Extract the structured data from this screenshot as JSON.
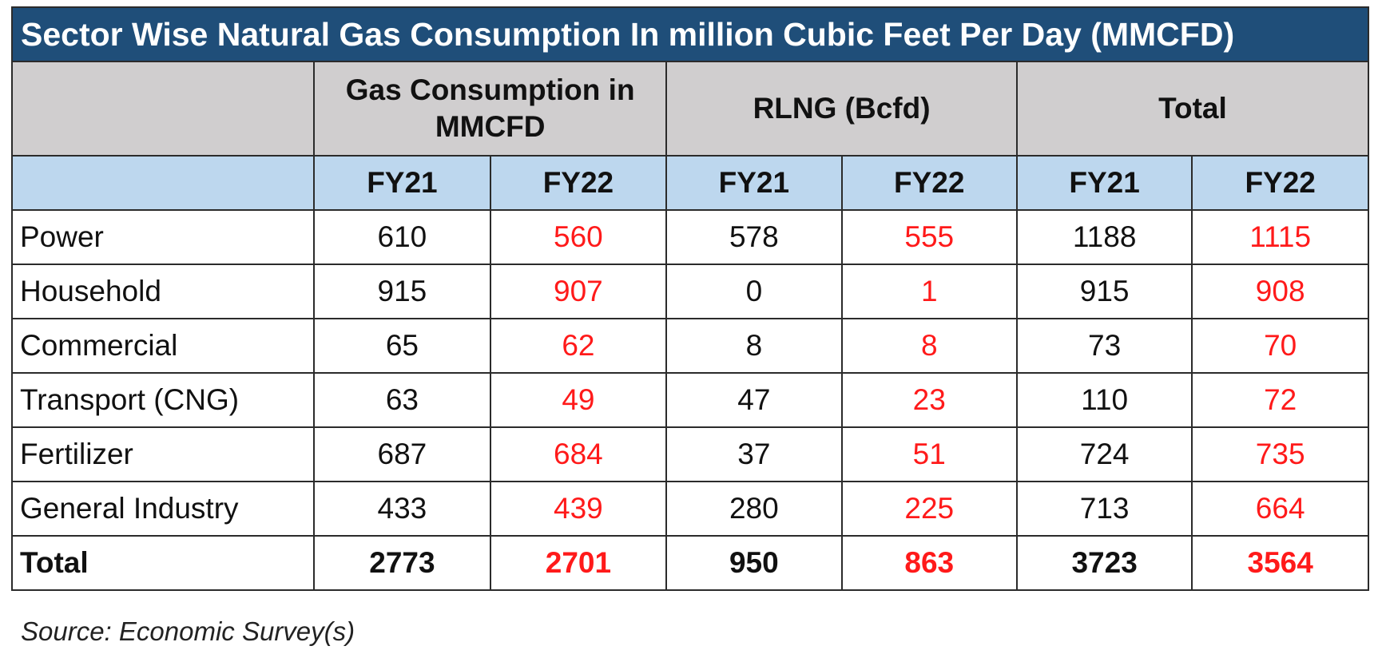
{
  "chart_data": {
    "type": "table",
    "title": "Sector Wise Natural Gas Consumption In million Cubic Feet Per Day (MMCFD)",
    "column_groups": [
      "Gas Consumption in MMCFD",
      "RLNG (Bcfd)",
      "Total"
    ],
    "sub_columns": [
      "FY21",
      "FY22",
      "FY21",
      "FY22",
      "FY21",
      "FY22"
    ],
    "rows": [
      {
        "label": "Power",
        "values": [
          "610",
          "560",
          "578",
          "555",
          "1188",
          "1115"
        ]
      },
      {
        "label": "Household",
        "values": [
          "915",
          "907",
          "0",
          "1",
          "915",
          "908"
        ]
      },
      {
        "label": "Commercial",
        "values": [
          "65",
          "62",
          "8",
          "8",
          "73",
          "70"
        ]
      },
      {
        "label": "Transport (CNG)",
        "values": [
          "63",
          "49",
          "47",
          "23",
          "110",
          "72"
        ]
      },
      {
        "label": "Fertilizer",
        "values": [
          "687",
          "684",
          "37",
          "51",
          "724",
          "735"
        ]
      },
      {
        "label": "General Industry",
        "values": [
          "433",
          "439",
          "280",
          "225",
          "713",
          "664"
        ]
      },
      {
        "label": "Total",
        "values": [
          "2773",
          "2701",
          "950",
          "863",
          "3723",
          "3564"
        ]
      }
    ],
    "source": "Source: Economic Survey(s)",
    "colors": {
      "title_bg": "#1f4e79",
      "group_header_bg": "#d0cecf",
      "year_header_bg": "#bdd7ee",
      "fy22_text": "#ff1a1a"
    }
  }
}
